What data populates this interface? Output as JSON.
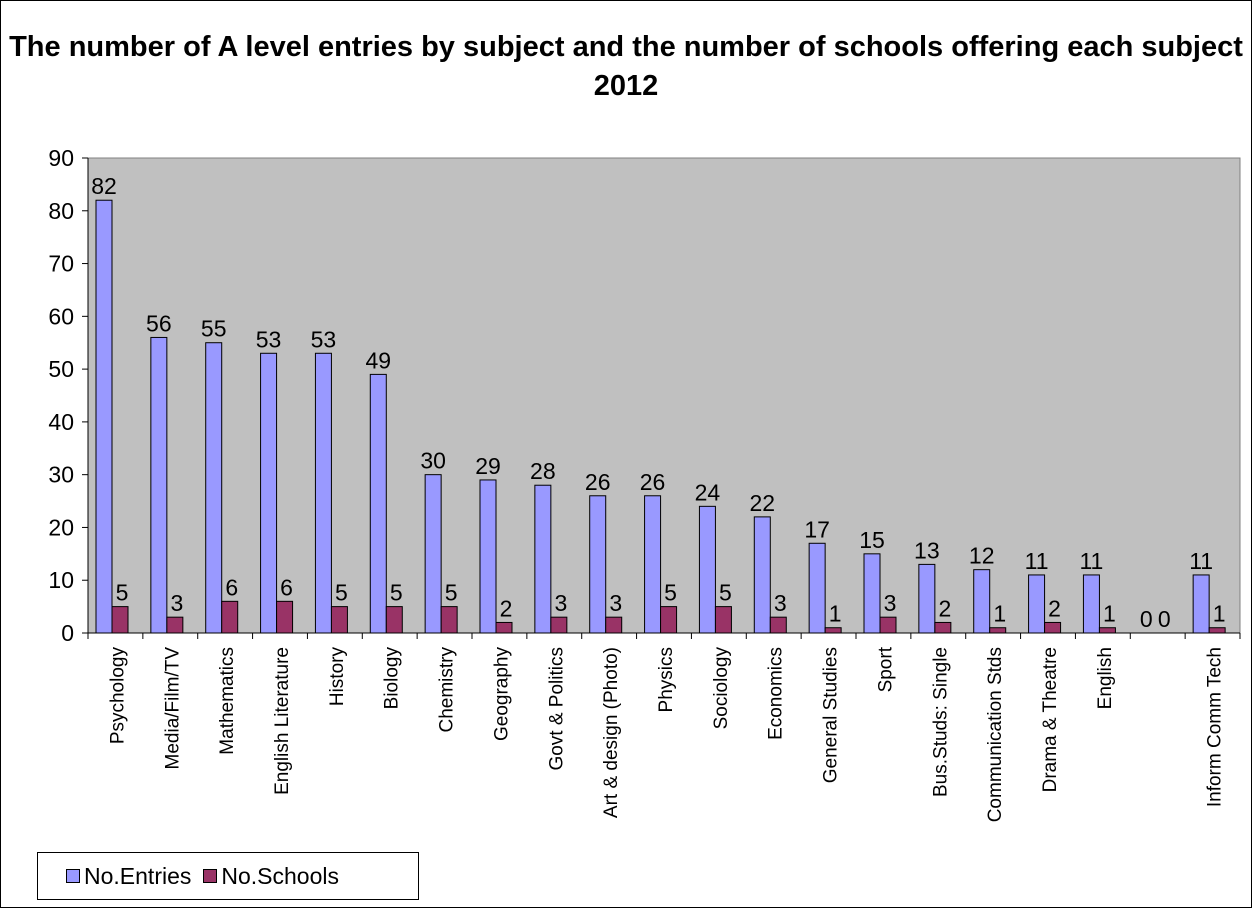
{
  "chart_data": {
    "type": "bar",
    "title": "The number of A level entries by subject and the number of schools offering each subject 2012",
    "categories": [
      "Psychology",
      "Media/Film/TV",
      "Mathematics",
      "English Literature",
      "History",
      "Biology",
      "Chemistry",
      "Geography",
      "Govt & Politics",
      "Art & design (Photo)",
      "Physics",
      "Sociology",
      "Economics",
      "General Studies",
      "Sport",
      "Bus.Studs: Single",
      "Communication Stds",
      "Drama & Theatre",
      "English",
      "",
      "Inform Comm Tech"
    ],
    "series": [
      {
        "name": "No.Entries",
        "color": "#9999ff",
        "values": [
          82,
          56,
          55,
          53,
          53,
          49,
          30,
          29,
          28,
          26,
          26,
          24,
          22,
          17,
          15,
          13,
          12,
          11,
          11,
          0,
          11
        ]
      },
      {
        "name": "No.Schools",
        "color": "#993366",
        "values": [
          5,
          3,
          6,
          6,
          5,
          5,
          5,
          2,
          3,
          3,
          5,
          5,
          3,
          1,
          3,
          2,
          1,
          2,
          1,
          0,
          1
        ]
      }
    ],
    "ylim": [
      0,
      90
    ],
    "yticks": [
      0,
      10,
      20,
      30,
      40,
      50,
      60,
      70,
      80,
      90
    ],
    "grid": false,
    "plot_background": "#c0c0c0",
    "data_labels": true,
    "legend_position": "bottom-left",
    "xlabel": "",
    "ylabel": ""
  }
}
